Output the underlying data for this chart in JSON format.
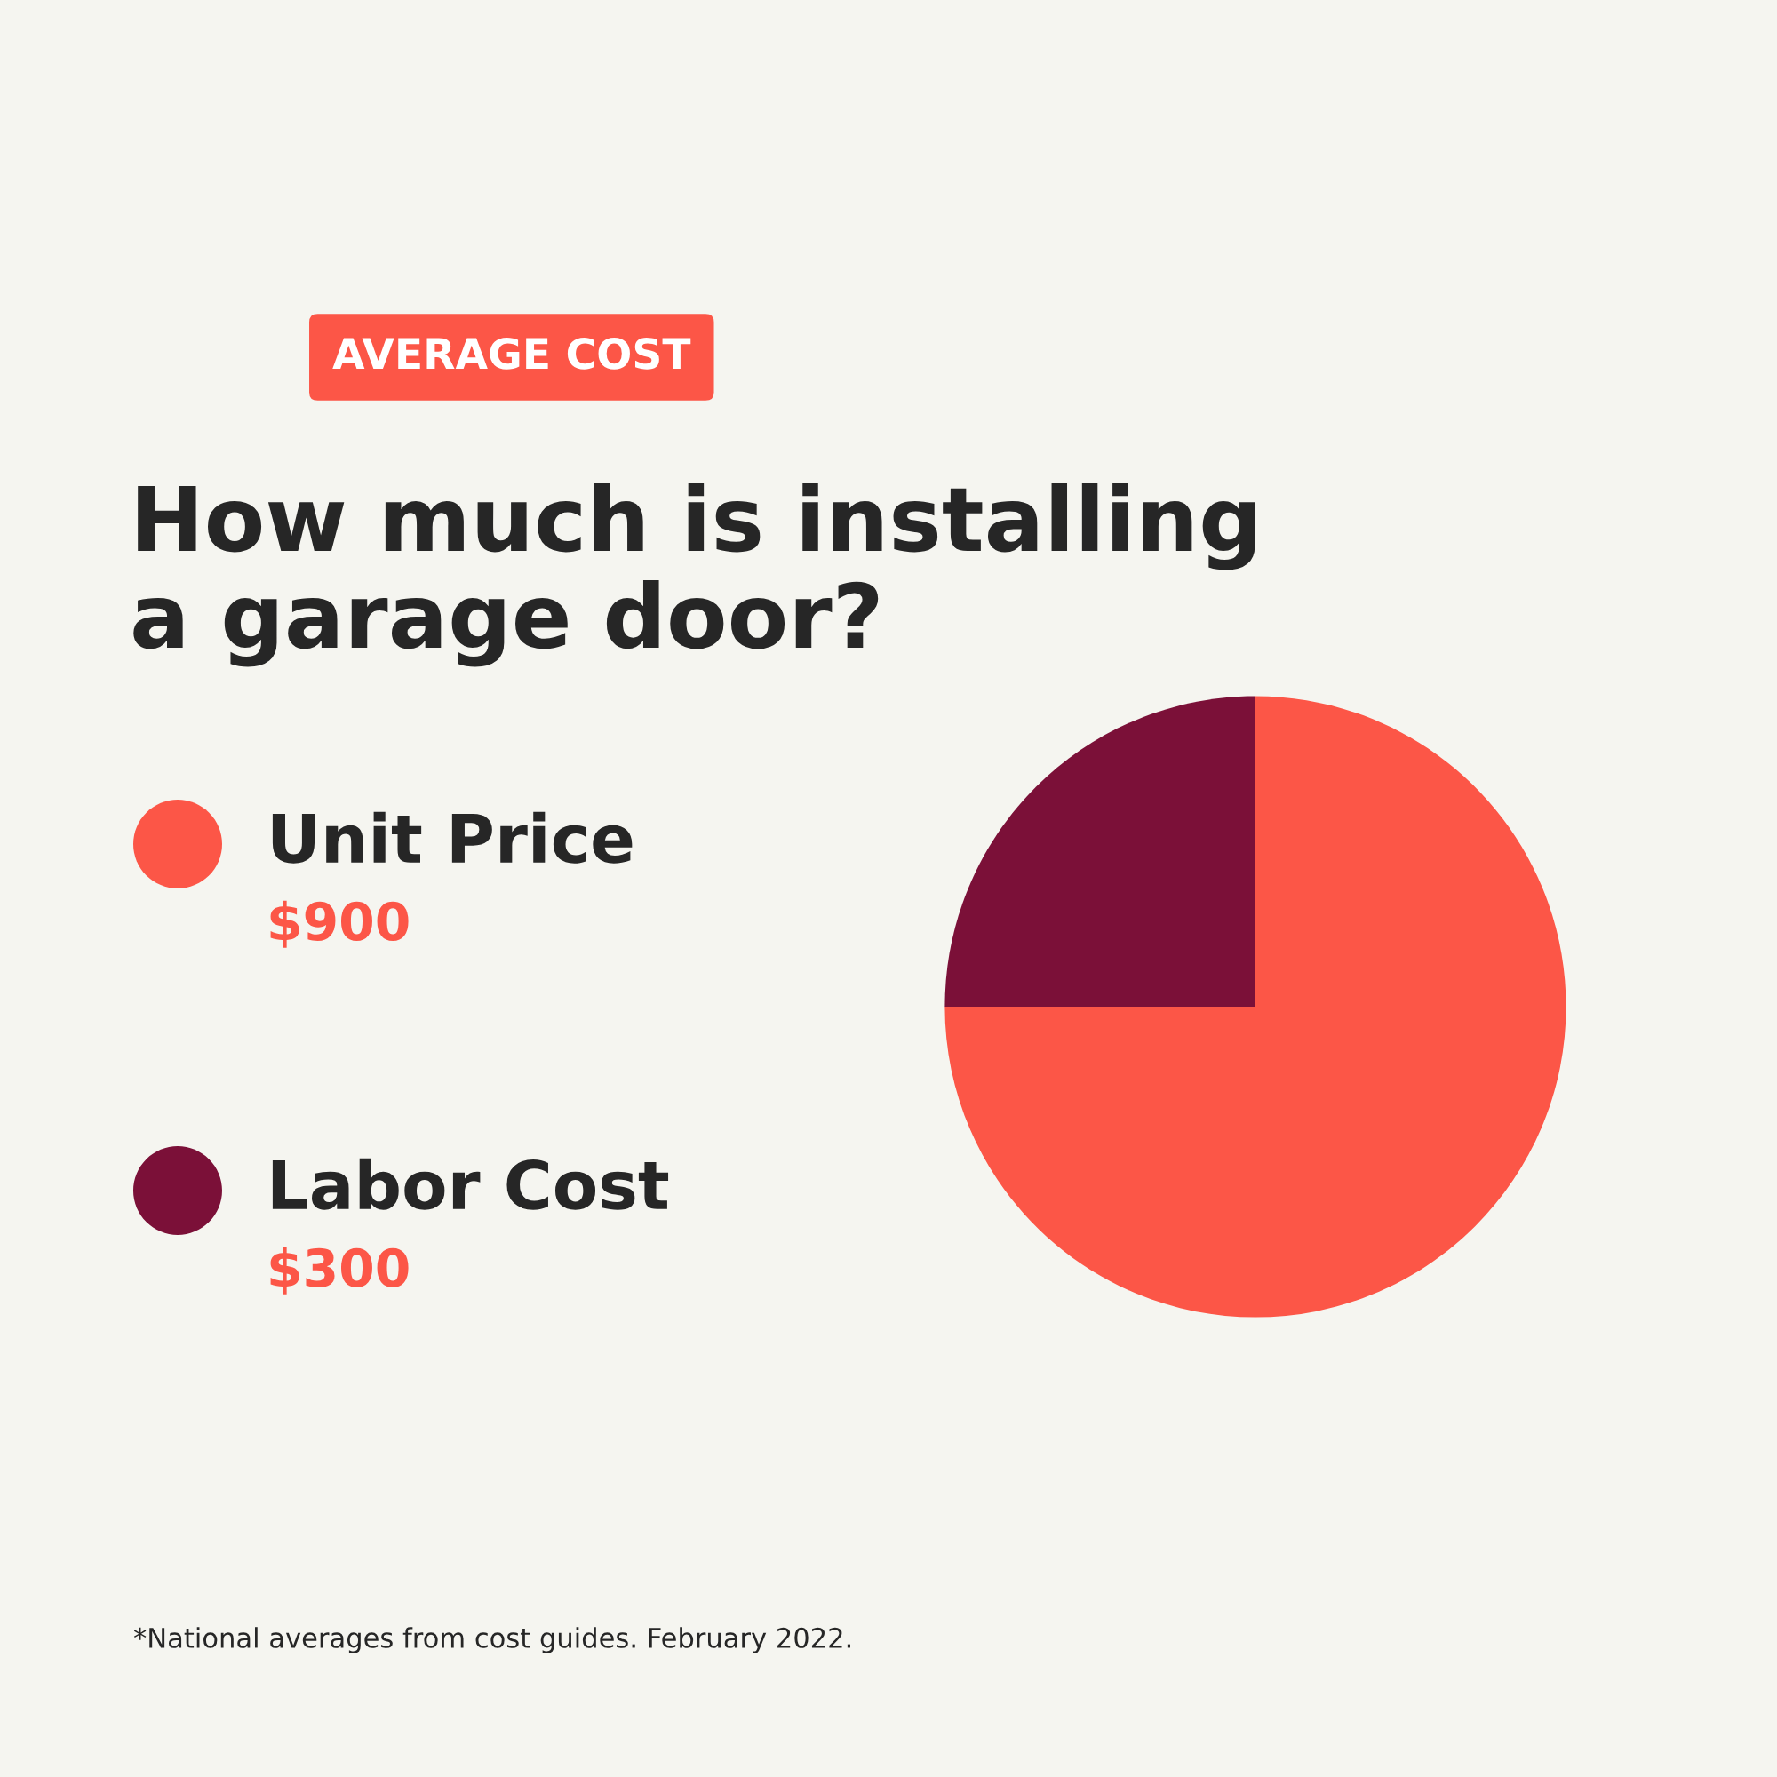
{
  "chart_data": {
    "type": "pie",
    "subtitle": "AVERAGE COST",
    "title": "How much is installing\na garage door?",
    "categories": [
      "Unit Price",
      "Labor Cost"
    ],
    "values": [
      900,
      300
    ],
    "colors": [
      "#fc5647",
      "#7b1038"
    ],
    "value_labels": [
      "$900",
      "$300"
    ],
    "legend": "left",
    "annotations": [
      "*National averages from cost guides. February 2022."
    ]
  }
}
